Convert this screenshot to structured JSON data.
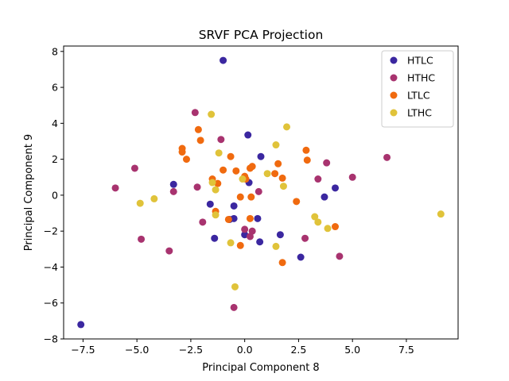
{
  "chart_data": {
    "type": "scatter",
    "title": "SRVF PCA Projection",
    "xlabel": "Principal Component 8",
    "ylabel": "Principal Component 9",
    "xlim": [
      -8.4,
      9.9
    ],
    "ylim": [
      -8.0,
      8.3
    ],
    "xticks": [
      -7.5,
      -5.0,
      -2.5,
      0.0,
      2.5,
      5.0,
      7.5
    ],
    "xtick_labels": [
      "−7.5",
      "−5.0",
      "−2.5",
      "0.0",
      "2.5",
      "5.0",
      "7.5"
    ],
    "yticks": [
      -8,
      -6,
      -4,
      -2,
      0,
      2,
      4,
      6,
      8
    ],
    "ytick_labels": [
      "−8",
      "−6",
      "−4",
      "−2",
      "0",
      "2",
      "4",
      "6",
      "8"
    ],
    "grid": false,
    "legend_position": "top-right",
    "series": [
      {
        "name": "HTLC",
        "color": "#3b27a0",
        "points": [
          [
            -1.0,
            7.5
          ],
          [
            -7.6,
            -7.2
          ],
          [
            0.15,
            3.35
          ],
          [
            0.75,
            2.15
          ],
          [
            0.2,
            0.7
          ],
          [
            -3.3,
            0.6
          ],
          [
            4.2,
            0.4
          ],
          [
            3.7,
            -0.1
          ],
          [
            -1.6,
            -0.5
          ],
          [
            -0.5,
            -0.6
          ],
          [
            -0.5,
            -1.3
          ],
          [
            0.6,
            -1.3
          ],
          [
            -0.7,
            -1.35
          ],
          [
            -1.4,
            -2.4
          ],
          [
            0.0,
            -2.2
          ],
          [
            1.65,
            -2.2
          ],
          [
            0.7,
            -2.6
          ],
          [
            2.6,
            -3.45
          ]
        ]
      },
      {
        "name": "HTHC",
        "color": "#a8336f",
        "points": [
          [
            -2.3,
            4.6
          ],
          [
            -1.1,
            3.1
          ],
          [
            -5.1,
            1.5
          ],
          [
            3.8,
            1.8
          ],
          [
            5.0,
            1.0
          ],
          [
            6.6,
            2.1
          ],
          [
            3.4,
            0.9
          ],
          [
            -6.0,
            0.4
          ],
          [
            -3.3,
            0.2
          ],
          [
            -2.2,
            0.45
          ],
          [
            0.65,
            0.2
          ],
          [
            -1.95,
            -1.5
          ],
          [
            0.0,
            -1.9
          ],
          [
            0.35,
            -2.0
          ],
          [
            0.25,
            -2.3
          ],
          [
            -4.8,
            -2.45
          ],
          [
            2.8,
            -2.4
          ],
          [
            -3.5,
            -3.1
          ],
          [
            4.4,
            -3.4
          ],
          [
            -0.5,
            -6.25
          ]
        ]
      },
      {
        "name": "LTLC",
        "color": "#f06a0f",
        "points": [
          [
            -2.15,
            3.65
          ],
          [
            -2.05,
            3.05
          ],
          [
            -2.9,
            2.6
          ],
          [
            -2.9,
            2.4
          ],
          [
            -2.7,
            2.0
          ],
          [
            -0.65,
            2.15
          ],
          [
            2.85,
            2.5
          ],
          [
            2.9,
            1.95
          ],
          [
            1.55,
            1.75
          ],
          [
            0.25,
            1.5
          ],
          [
            0.35,
            1.6
          ],
          [
            -1.0,
            1.4
          ],
          [
            -0.4,
            1.35
          ],
          [
            1.4,
            1.2
          ],
          [
            0.0,
            1.05
          ],
          [
            1.75,
            0.95
          ],
          [
            0.05,
            0.9
          ],
          [
            -1.5,
            0.9
          ],
          [
            -1.25,
            0.65
          ],
          [
            -0.2,
            -0.1
          ],
          [
            0.3,
            -0.1
          ],
          [
            2.4,
            -0.35
          ],
          [
            -1.35,
            -0.9
          ],
          [
            -0.75,
            -1.35
          ],
          [
            0.25,
            -1.3
          ],
          [
            4.2,
            -1.75
          ],
          [
            -0.2,
            -2.8
          ],
          [
            1.75,
            -3.75
          ]
        ]
      },
      {
        "name": "LTHC",
        "color": "#e0c33a",
        "points": [
          [
            -1.55,
            4.5
          ],
          [
            1.95,
            3.8
          ],
          [
            -1.2,
            2.35
          ],
          [
            1.45,
            2.8
          ],
          [
            1.05,
            1.2
          ],
          [
            -0.1,
            0.9
          ],
          [
            -1.5,
            0.7
          ],
          [
            -1.35,
            0.3
          ],
          [
            1.8,
            0.5
          ],
          [
            -4.2,
            -0.2
          ],
          [
            -4.85,
            -0.45
          ],
          [
            -1.35,
            -1.1
          ],
          [
            3.25,
            -1.2
          ],
          [
            3.4,
            -1.5
          ],
          [
            3.85,
            -1.85
          ],
          [
            9.1,
            -1.05
          ],
          [
            -0.65,
            -2.65
          ],
          [
            1.45,
            -2.85
          ],
          [
            -0.45,
            -5.1
          ]
        ]
      }
    ]
  }
}
